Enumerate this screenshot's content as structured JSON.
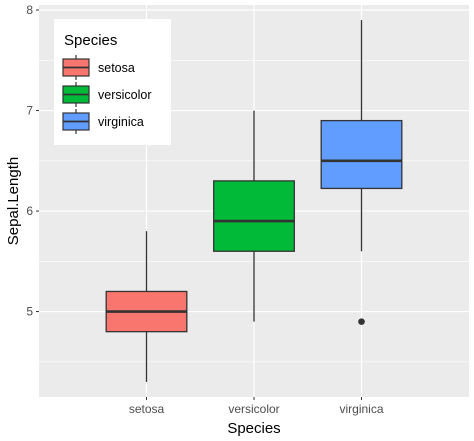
{
  "chart_data": {
    "type": "boxplot",
    "xlabel": "Species",
    "ylabel": "Sepal.Length",
    "categories": [
      "setosa",
      "versicolor",
      "virginica"
    ],
    "ylim": [
      4.15,
      8.05
    ],
    "yticks": [
      5,
      6,
      7,
      8
    ],
    "series": [
      {
        "name": "setosa",
        "color": "#F8766D",
        "min": 4.3,
        "q1": 4.8,
        "median": 5.0,
        "q3": 5.2,
        "max": 5.8,
        "outliers": []
      },
      {
        "name": "versicolor",
        "color": "#00BA38",
        "min": 4.9,
        "q1": 5.6,
        "median": 5.9,
        "q3": 6.3,
        "max": 7.0,
        "outliers": []
      },
      {
        "name": "virginica",
        "color": "#619CFF",
        "min": 5.6,
        "q1": 6.225,
        "median": 6.5,
        "q3": 6.9,
        "max": 7.9,
        "outliers": [
          4.9
        ]
      }
    ],
    "legend": {
      "title": "Species",
      "entries": [
        "setosa",
        "versicolor",
        "virginica"
      ],
      "placement": "inside top-left"
    },
    "grid": true,
    "panel_background": "#EBEBEB"
  }
}
